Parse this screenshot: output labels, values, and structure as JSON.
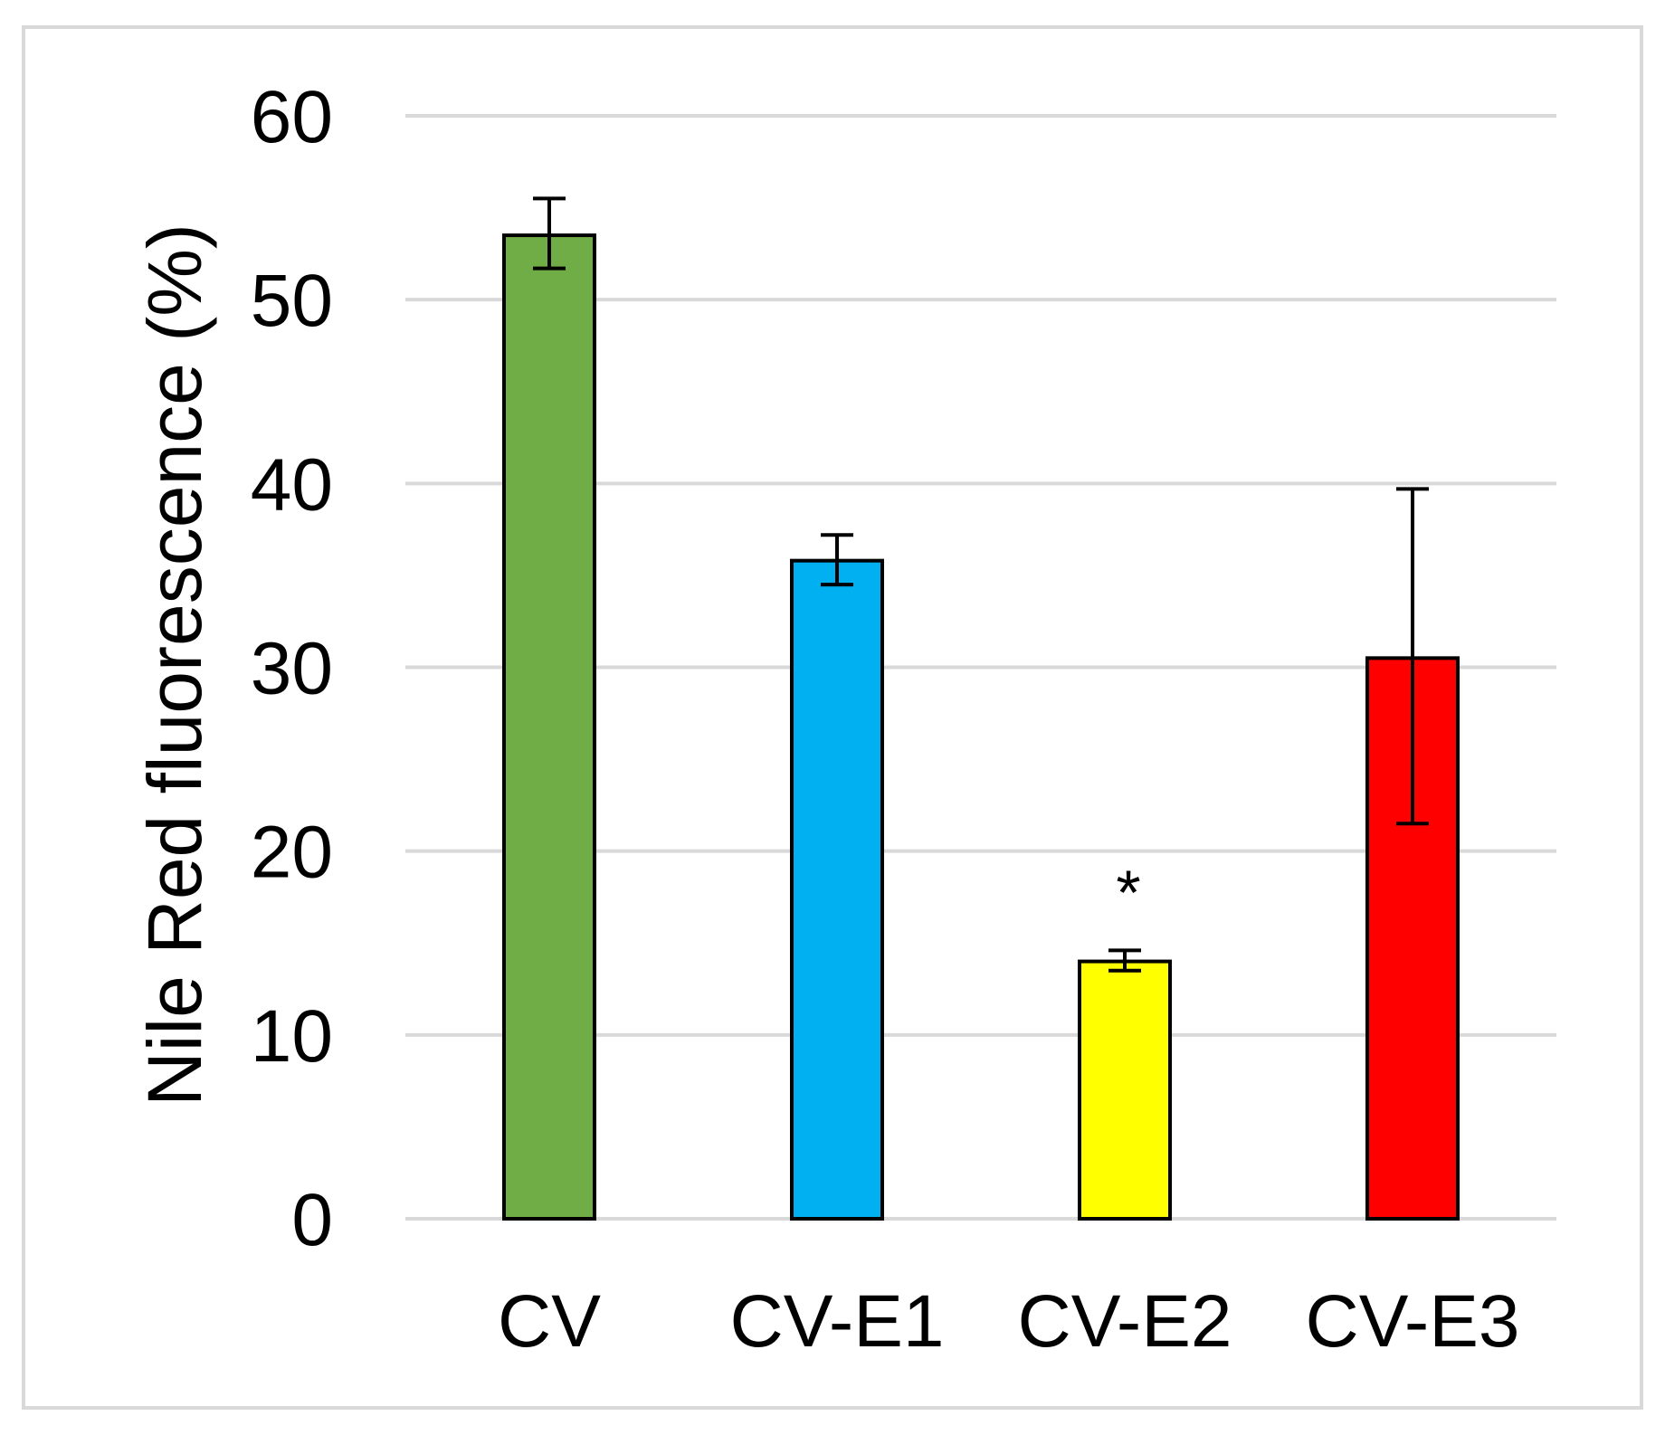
{
  "chart_data": {
    "type": "bar",
    "title": "",
    "xlabel": "",
    "ylabel": "Nile Red fluorescence (%)",
    "ylim": [
      0,
      60
    ],
    "yticks": [
      0,
      10,
      20,
      30,
      40,
      50,
      60
    ],
    "grid": true,
    "legend": "none",
    "categories": [
      "CV",
      "CV-E1",
      "CV-E2",
      "CV-E3"
    ],
    "values": [
      53.5,
      35.8,
      14.0,
      30.5
    ],
    "error_low": [
      51.7,
      34.5,
      13.5,
      21.5
    ],
    "error_high": [
      55.5,
      37.2,
      14.6,
      39.7
    ],
    "colors": [
      "#70ad47",
      "#00b0f0",
      "#ffff00",
      "#ff0000"
    ],
    "annotations": [
      {
        "category": "CV-E2",
        "text": "*"
      }
    ]
  }
}
